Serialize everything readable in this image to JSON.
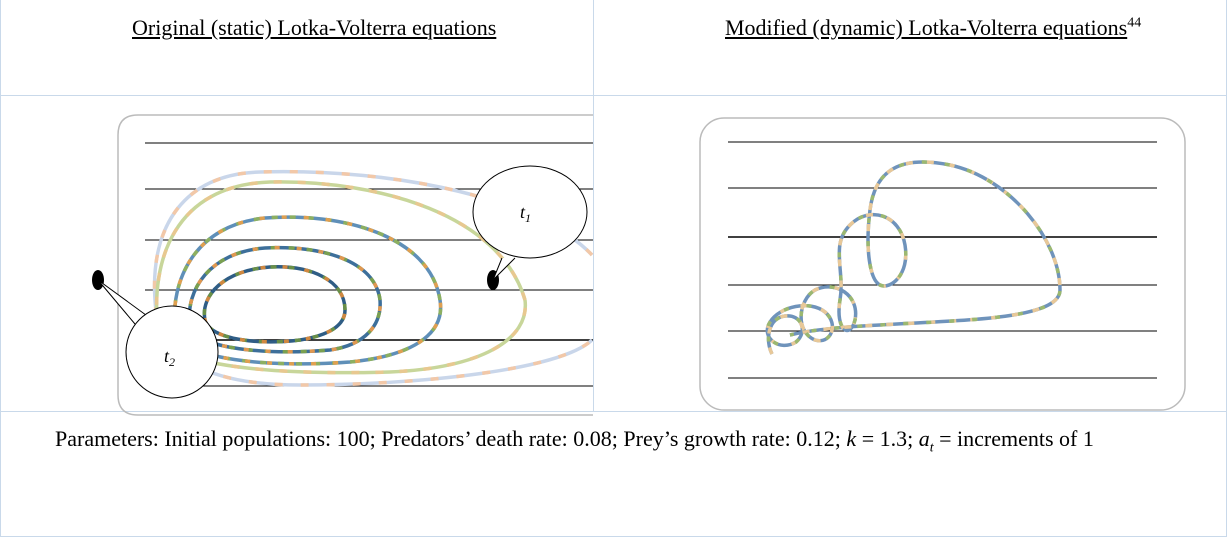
{
  "table": {
    "header": {
      "left": "Original (static) Lotka-Volterra equations",
      "right": "Modified (dynamic) Lotka-Volterra equations",
      "right_note": "44"
    },
    "figure_left": {
      "callout_1": {
        "base": "t",
        "sub": "1"
      },
      "callout_2": {
        "base": "t",
        "sub": "2"
      }
    },
    "parameters": {
      "text": "Parameters: Initial populations: 100; Predators’ death rate: 0.08; Prey’s growth rate: 0.12; ",
      "k": "k",
      "k_value": " = 1.3; ",
      "a": "a",
      "a_sub": "t",
      "a_value": " = increments of 1"
    }
  }
}
